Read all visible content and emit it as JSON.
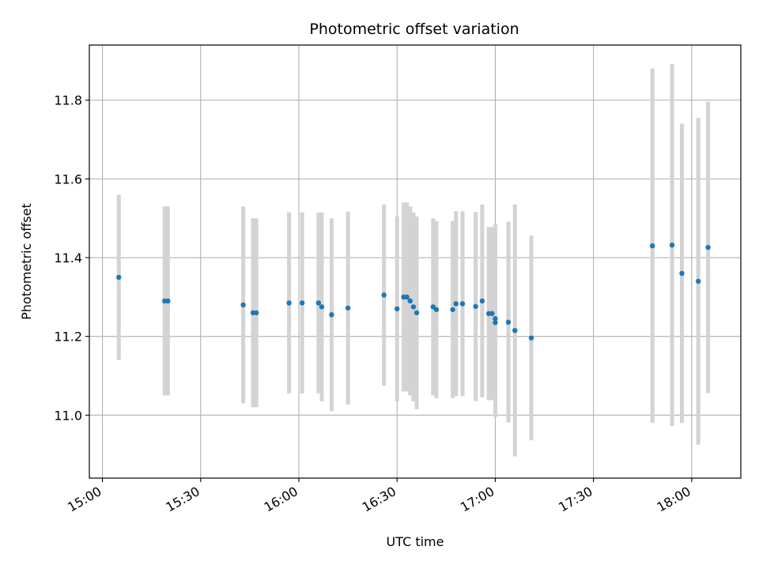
{
  "chart_data": {
    "type": "scatter",
    "title": "Photometric offset variation",
    "xlabel": "UTC time",
    "ylabel": "Photometric offset",
    "x_ticks": [
      "15:00",
      "15:30",
      "16:00",
      "16:30",
      "17:00",
      "17:30",
      "18:00"
    ],
    "y_ticks": [
      "11.0",
      "11.2",
      "11.4",
      "11.6",
      "11.8"
    ],
    "xlim": [
      "14:56",
      "18:15"
    ],
    "ylim": [
      10.84,
      11.94
    ],
    "grid": true,
    "marker_color": "#1f77b4",
    "errorbar_color": "#d3d3d3",
    "points": [
      {
        "t": "15:05",
        "y": 11.35,
        "err": 0.21
      },
      {
        "t": "15:19",
        "y": 11.29,
        "err": 0.24
      },
      {
        "t": "15:20",
        "y": 11.29,
        "err": 0.24
      },
      {
        "t": "15:43",
        "y": 11.28,
        "err": 0.25
      },
      {
        "t": "15:46",
        "y": 11.26,
        "err": 0.24
      },
      {
        "t": "15:47",
        "y": 11.26,
        "err": 0.24
      },
      {
        "t": "15:57",
        "y": 11.285,
        "err": 0.23
      },
      {
        "t": "16:01",
        "y": 11.285,
        "err": 0.23
      },
      {
        "t": "16:06",
        "y": 11.285,
        "err": 0.23
      },
      {
        "t": "16:07",
        "y": 11.275,
        "err": 0.24
      },
      {
        "t": "16:10",
        "y": 11.255,
        "err": 0.245
      },
      {
        "t": "16:15",
        "y": 11.272,
        "err": 0.245
      },
      {
        "t": "16:26",
        "y": 11.305,
        "err": 0.23
      },
      {
        "t": "16:30",
        "y": 11.27,
        "err": 0.235
      },
      {
        "t": "16:32",
        "y": 11.3,
        "err": 0.24
      },
      {
        "t": "16:33",
        "y": 11.3,
        "err": 0.24
      },
      {
        "t": "16:34",
        "y": 11.29,
        "err": 0.24
      },
      {
        "t": "16:35",
        "y": 11.275,
        "err": 0.24
      },
      {
        "t": "16:36",
        "y": 11.26,
        "err": 0.245
      },
      {
        "t": "16:41",
        "y": 11.275,
        "err": 0.225
      },
      {
        "t": "16:42",
        "y": 11.268,
        "err": 0.225
      },
      {
        "t": "16:47",
        "y": 11.268,
        "err": 0.225
      },
      {
        "t": "16:48",
        "y": 11.283,
        "err": 0.235
      },
      {
        "t": "16:50",
        "y": 11.283,
        "err": 0.235
      },
      {
        "t": "16:54",
        "y": 11.276,
        "err": 0.24
      },
      {
        "t": "16:56",
        "y": 11.29,
        "err": 0.245
      },
      {
        "t": "16:58",
        "y": 11.258,
        "err": 0.22
      },
      {
        "t": "16:59",
        "y": 11.258,
        "err": 0.22
      },
      {
        "t": "17:00",
        "y": 11.235,
        "err": 0.24
      },
      {
        "t": "17:00",
        "y": 11.245,
        "err": 0.24
      },
      {
        "t": "17:04",
        "y": 11.236,
        "err": 0.255
      },
      {
        "t": "17:06",
        "y": 11.215,
        "err": 0.32
      },
      {
        "t": "17:11",
        "y": 11.196,
        "err": 0.26
      },
      {
        "t": "17:48",
        "y": 11.43,
        "err": 0.45
      },
      {
        "t": "17:54",
        "y": 11.432,
        "err": 0.46
      },
      {
        "t": "17:57",
        "y": 11.36,
        "err": 0.38
      },
      {
        "t": "18:02",
        "y": 11.34,
        "err": 0.415
      },
      {
        "t": "18:05",
        "y": 11.426,
        "err": 0.37
      }
    ]
  }
}
